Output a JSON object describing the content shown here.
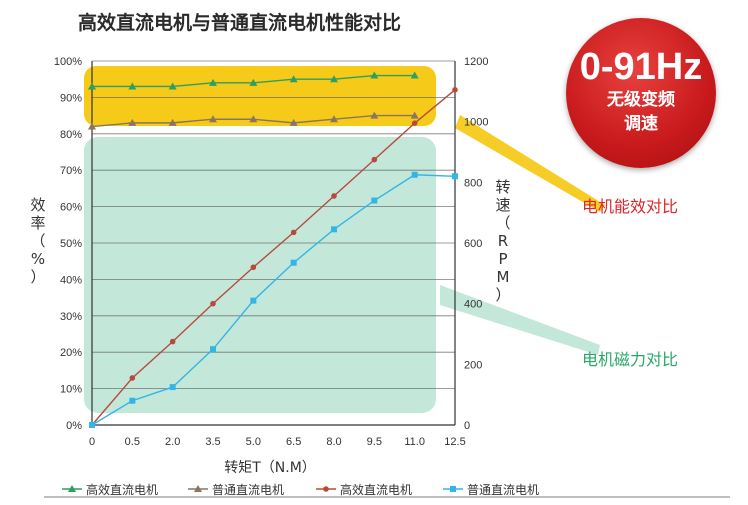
{
  "title": "高效直流电机与普通直流电机性能对比",
  "badge": {
    "big": "0-91Hz",
    "line1": "无级变频",
    "line2": "调速"
  },
  "annotations": {
    "efficiency": "电机能效对比",
    "torque": "电机磁力对比"
  },
  "colors": {
    "efficiency_band": "#f5c400",
    "torque_band": "#b8e4d4",
    "hi_eff": "#2f9e63",
    "std_eff": "#8a7560",
    "hi_speed": "#b84a3c",
    "std_speed": "#33b5e5",
    "badge": "#c8191c",
    "anno_red": "#d8262a",
    "anno_green": "#27a867"
  },
  "chart_data": {
    "type": "line",
    "title": "高效直流电机与普通直流电机性能对比",
    "x": [
      0,
      0.5,
      2.0,
      3.5,
      5.0,
      6.5,
      8.0,
      9.5,
      11.0,
      12.5
    ],
    "xtick_labels": [
      "0",
      "0.5",
      "2.0",
      "3.5",
      "5.0",
      "6.5",
      "8.0",
      "9.5",
      "11.0",
      "12.5"
    ],
    "xlabel": "转矩T（N.M）",
    "ylabel_left": "效率（%）",
    "ylabel_right": "转速（RPM）",
    "ylim_left": [
      0,
      100
    ],
    "ylim_right": [
      0,
      1200
    ],
    "yticks_left": [
      "0%",
      "10%",
      "20%",
      "30%",
      "40%",
      "50%",
      "60%",
      "70%",
      "80%",
      "90%",
      "100%"
    ],
    "yticks_right": [
      "0",
      "200",
      "400",
      "600",
      "800",
      "1000",
      "1200"
    ],
    "grid": true,
    "legend_position": "bottom",
    "series": [
      {
        "name": "高效直流电机",
        "axis": "left",
        "marker": "triangle",
        "color": "#2f9e63",
        "values": [
          93,
          93,
          93,
          94,
          94,
          95,
          95,
          96,
          96,
          null
        ]
      },
      {
        "name": "普通直流电机",
        "axis": "left",
        "marker": "triangle",
        "color": "#8a7560",
        "values": [
          82,
          83,
          83,
          84,
          84,
          83,
          84,
          85,
          85,
          null
        ]
      },
      {
        "name": "高效直流电机",
        "axis": "right",
        "marker": "circle",
        "color": "#b84a3c",
        "values": [
          0,
          155,
          275,
          400,
          520,
          635,
          755,
          875,
          995,
          1105
        ]
      },
      {
        "name": "普通直流电机",
        "axis": "right",
        "marker": "square",
        "color": "#33b5e5",
        "values": [
          0,
          80,
          125,
          250,
          410,
          535,
          645,
          740,
          825,
          820
        ]
      }
    ]
  }
}
